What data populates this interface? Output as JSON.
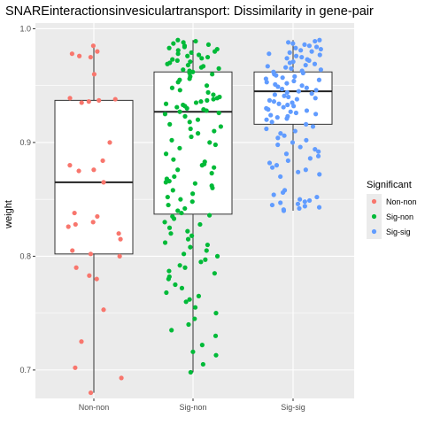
{
  "chart_data": {
    "type": "box-jitter",
    "title": "SNAREinteractionsinvesiculartransport: Dissimilarity in gene-pair",
    "xlabel": "",
    "ylabel": "weight",
    "ylim": [
      0.675,
      1.005
    ],
    "yticks": [
      0.7,
      0.8,
      0.9,
      1.0
    ],
    "ytick_labels": [
      "0.7",
      "0.8",
      "0.9",
      "1.0"
    ],
    "grid": true,
    "categories": [
      "Non-non",
      "Sig-non",
      "Sig-sig"
    ],
    "colors": {
      "Non-non": "#F8766D",
      "Sig-non": "#00BA38",
      "Sig-sig": "#619CFF",
      "panel": "#EBEBEB",
      "grid": "#FFFFFF"
    },
    "legend": {
      "title": "Significant",
      "placement": "right",
      "entries": [
        "Non-non",
        "Sig-non",
        "Sig-sig"
      ]
    },
    "boxes": [
      {
        "name": "Non-non",
        "min": 0.68,
        "q1": 0.802,
        "median": 0.865,
        "q3": 0.937,
        "max": 0.985
      },
      {
        "name": "Sig-non",
        "min": 0.698,
        "q1": 0.837,
        "median": 0.927,
        "q3": 0.962,
        "max": 0.99
      },
      {
        "name": "Sig-sig",
        "min": 0.84,
        "q1": 0.916,
        "median": 0.945,
        "q3": 0.962,
        "max": 0.99
      }
    ],
    "series": [
      {
        "name": "Non-non",
        "values": [
          0.985,
          0.98,
          0.978,
          0.976,
          0.975,
          0.96,
          0.939,
          0.938,
          0.937,
          0.936,
          0.935,
          0.9,
          0.884,
          0.88,
          0.876,
          0.875,
          0.865,
          0.838,
          0.835,
          0.83,
          0.828,
          0.826,
          0.82,
          0.815,
          0.805,
          0.802,
          0.8,
          0.79,
          0.783,
          0.78,
          0.753,
          0.725,
          0.702,
          0.693,
          0.68
        ]
      },
      {
        "name": "Sig-non",
        "values": [
          0.99,
          0.989,
          0.988,
          0.987,
          0.986,
          0.985,
          0.984,
          0.983,
          0.982,
          0.981,
          0.98,
          0.979,
          0.978,
          0.977,
          0.976,
          0.975,
          0.974,
          0.973,
          0.972,
          0.971,
          0.97,
          0.969,
          0.968,
          0.967,
          0.966,
          0.965,
          0.964,
          0.963,
          0.962,
          0.961,
          0.96,
          0.958,
          0.956,
          0.955,
          0.953,
          0.95,
          0.948,
          0.946,
          0.944,
          0.942,
          0.94,
          0.939,
          0.938,
          0.937,
          0.936,
          0.935,
          0.934,
          0.933,
          0.932,
          0.931,
          0.93,
          0.929,
          0.928,
          0.927,
          0.926,
          0.925,
          0.923,
          0.92,
          0.918,
          0.916,
          0.914,
          0.912,
          0.91,
          0.908,
          0.905,
          0.902,
          0.9,
          0.898,
          0.895,
          0.89,
          0.885,
          0.883,
          0.881,
          0.88,
          0.878,
          0.876,
          0.873,
          0.87,
          0.868,
          0.866,
          0.865,
          0.864,
          0.862,
          0.86,
          0.858,
          0.855,
          0.852,
          0.85,
          0.848,
          0.845,
          0.842,
          0.84,
          0.838,
          0.836,
          0.835,
          0.833,
          0.83,
          0.828,
          0.825,
          0.822,
          0.82,
          0.818,
          0.815,
          0.812,
          0.81,
          0.808,
          0.805,
          0.802,
          0.8,
          0.797,
          0.795,
          0.792,
          0.79,
          0.787,
          0.785,
          0.782,
          0.78,
          0.775,
          0.772,
          0.768,
          0.765,
          0.762,
          0.76,
          0.755,
          0.75,
          0.745,
          0.74,
          0.735,
          0.73,
          0.722,
          0.716,
          0.713,
          0.705,
          0.698
        ]
      },
      {
        "name": "Sig-sig",
        "values": [
          0.99,
          0.989,
          0.988,
          0.987,
          0.986,
          0.985,
          0.984,
          0.983,
          0.982,
          0.981,
          0.98,
          0.979,
          0.978,
          0.977,
          0.976,
          0.975,
          0.974,
          0.973,
          0.972,
          0.971,
          0.97,
          0.969,
          0.968,
          0.967,
          0.966,
          0.965,
          0.964,
          0.963,
          0.962,
          0.961,
          0.96,
          0.959,
          0.958,
          0.957,
          0.956,
          0.955,
          0.954,
          0.953,
          0.952,
          0.951,
          0.95,
          0.949,
          0.948,
          0.947,
          0.946,
          0.945,
          0.944,
          0.943,
          0.942,
          0.941,
          0.94,
          0.939,
          0.938,
          0.937,
          0.936,
          0.935,
          0.934,
          0.933,
          0.932,
          0.931,
          0.93,
          0.929,
          0.928,
          0.927,
          0.926,
          0.925,
          0.924,
          0.923,
          0.922,
          0.921,
          0.92,
          0.918,
          0.916,
          0.914,
          0.912,
          0.91,
          0.908,
          0.906,
          0.904,
          0.902,
          0.9,
          0.898,
          0.896,
          0.894,
          0.892,
          0.89,
          0.888,
          0.886,
          0.884,
          0.882,
          0.88,
          0.878,
          0.876,
          0.874,
          0.872,
          0.87,
          0.858,
          0.856,
          0.854,
          0.852,
          0.85,
          0.849,
          0.848,
          0.847,
          0.846,
          0.845,
          0.844,
          0.843,
          0.842,
          0.841,
          0.84
        ]
      }
    ]
  }
}
